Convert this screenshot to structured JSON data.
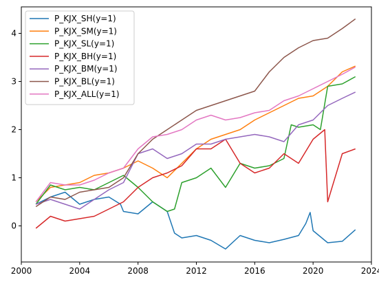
{
  "chart_data": {
    "type": "line",
    "xlim": [
      2000.0,
      2024.0
    ],
    "ylim": [
      -0.75,
      4.55
    ],
    "x_ticks": [
      2000,
      2004,
      2008,
      2012,
      2016,
      2020,
      2024
    ],
    "y_ticks": [
      0,
      1,
      2,
      3,
      4
    ],
    "grid": false,
    "legend_position": "top-left",
    "series": [
      {
        "name": "P_KJX_SH(y=1)",
        "color": "#1f77b4",
        "points": [
          [
            2001.0,
            0.45
          ],
          [
            2002.0,
            0.6
          ],
          [
            2003.0,
            0.7
          ],
          [
            2004.0,
            0.45
          ],
          [
            2005.0,
            0.55
          ],
          [
            2006.0,
            0.6
          ],
          [
            2006.8,
            0.45
          ],
          [
            2007.0,
            0.3
          ],
          [
            2008.0,
            0.25
          ],
          [
            2009.0,
            0.5
          ],
          [
            2010.0,
            0.3
          ],
          [
            2010.5,
            -0.15
          ],
          [
            2011.0,
            -0.25
          ],
          [
            2012.0,
            -0.2
          ],
          [
            2013.0,
            -0.3
          ],
          [
            2014.0,
            -0.48
          ],
          [
            2015.0,
            -0.2
          ],
          [
            2016.0,
            -0.3
          ],
          [
            2017.0,
            -0.35
          ],
          [
            2018.0,
            -0.28
          ],
          [
            2019.0,
            -0.2
          ],
          [
            2019.5,
            0.05
          ],
          [
            2019.8,
            0.28
          ],
          [
            2020.0,
            -0.1
          ],
          [
            2021.0,
            -0.35
          ],
          [
            2022.0,
            -0.32
          ],
          [
            2022.9,
            -0.08
          ]
        ]
      },
      {
        "name": "P_KJX_SM(y=1)",
        "color": "#ff7f0e",
        "points": [
          [
            2001.0,
            0.5
          ],
          [
            2002.0,
            0.8
          ],
          [
            2003.0,
            0.85
          ],
          [
            2004.0,
            0.9
          ],
          [
            2005.0,
            1.05
          ],
          [
            2006.0,
            1.1
          ],
          [
            2007.0,
            1.2
          ],
          [
            2008.0,
            1.35
          ],
          [
            2009.0,
            1.2
          ],
          [
            2010.0,
            1.0
          ],
          [
            2011.0,
            1.3
          ],
          [
            2012.0,
            1.6
          ],
          [
            2013.0,
            1.8
          ],
          [
            2014.0,
            1.9
          ],
          [
            2015.0,
            2.0
          ],
          [
            2016.0,
            2.2
          ],
          [
            2017.0,
            2.35
          ],
          [
            2018.0,
            2.5
          ],
          [
            2019.0,
            2.65
          ],
          [
            2020.0,
            2.7
          ],
          [
            2021.0,
            2.9
          ],
          [
            2022.0,
            3.2
          ],
          [
            2022.9,
            3.32
          ]
        ]
      },
      {
        "name": "P_KJX_SL(y=1)",
        "color": "#2ca02c",
        "points": [
          [
            2001.0,
            0.45
          ],
          [
            2002.0,
            0.85
          ],
          [
            2003.0,
            0.75
          ],
          [
            2004.0,
            0.8
          ],
          [
            2005.0,
            0.75
          ],
          [
            2006.0,
            0.9
          ],
          [
            2007.0,
            1.05
          ],
          [
            2008.0,
            0.8
          ],
          [
            2009.0,
            0.5
          ],
          [
            2010.0,
            0.3
          ],
          [
            2010.5,
            0.35
          ],
          [
            2011.0,
            0.9
          ],
          [
            2012.0,
            1.0
          ],
          [
            2013.0,
            1.2
          ],
          [
            2014.0,
            0.8
          ],
          [
            2015.0,
            1.3
          ],
          [
            2016.0,
            1.2
          ],
          [
            2017.0,
            1.25
          ],
          [
            2018.0,
            1.4
          ],
          [
            2018.5,
            2.1
          ],
          [
            2019.0,
            2.05
          ],
          [
            2020.0,
            2.1
          ],
          [
            2020.5,
            2.0
          ],
          [
            2021.0,
            2.9
          ],
          [
            2022.0,
            2.95
          ],
          [
            2022.9,
            3.1
          ]
        ]
      },
      {
        "name": "P_KJX_BH(y=1)",
        "color": "#d62728",
        "points": [
          [
            2001.0,
            -0.05
          ],
          [
            2002.0,
            0.2
          ],
          [
            2003.0,
            0.1
          ],
          [
            2004.0,
            0.15
          ],
          [
            2005.0,
            0.2
          ],
          [
            2006.0,
            0.35
          ],
          [
            2007.0,
            0.5
          ],
          [
            2008.0,
            0.8
          ],
          [
            2009.0,
            1.0
          ],
          [
            2010.0,
            1.1
          ],
          [
            2011.0,
            1.25
          ],
          [
            2012.0,
            1.6
          ],
          [
            2013.0,
            1.6
          ],
          [
            2014.0,
            1.8
          ],
          [
            2015.0,
            1.3
          ],
          [
            2016.0,
            1.1
          ],
          [
            2017.0,
            1.2
          ],
          [
            2018.0,
            1.5
          ],
          [
            2019.0,
            1.3
          ],
          [
            2020.0,
            1.8
          ],
          [
            2020.8,
            2.0
          ],
          [
            2021.0,
            0.5
          ],
          [
            2022.0,
            1.5
          ],
          [
            2022.9,
            1.6
          ]
        ]
      },
      {
        "name": "P_KJX_BM(y=1)",
        "color": "#9467bd",
        "points": [
          [
            2001.0,
            0.45
          ],
          [
            2002.0,
            0.55
          ],
          [
            2003.0,
            0.45
          ],
          [
            2004.0,
            0.35
          ],
          [
            2005.0,
            0.55
          ],
          [
            2006.0,
            0.75
          ],
          [
            2007.0,
            0.9
          ],
          [
            2008.0,
            1.5
          ],
          [
            2009.0,
            1.6
          ],
          [
            2010.0,
            1.4
          ],
          [
            2011.0,
            1.5
          ],
          [
            2012.0,
            1.7
          ],
          [
            2013.0,
            1.7
          ],
          [
            2014.0,
            1.8
          ],
          [
            2015.0,
            1.85
          ],
          [
            2016.0,
            1.9
          ],
          [
            2017.0,
            1.85
          ],
          [
            2018.0,
            1.75
          ],
          [
            2019.0,
            2.1
          ],
          [
            2020.0,
            2.2
          ],
          [
            2021.0,
            2.5
          ],
          [
            2022.0,
            2.65
          ],
          [
            2022.9,
            2.78
          ]
        ]
      },
      {
        "name": "P_KJX_BL(y=1)",
        "color": "#8c564b",
        "points": [
          [
            2001.0,
            0.4
          ],
          [
            2002.0,
            0.6
          ],
          [
            2003.0,
            0.55
          ],
          [
            2004.0,
            0.7
          ],
          [
            2005.0,
            0.75
          ],
          [
            2006.0,
            0.8
          ],
          [
            2007.0,
            1.0
          ],
          [
            2008.0,
            1.5
          ],
          [
            2009.0,
            1.8
          ],
          [
            2010.0,
            2.0
          ],
          [
            2011.0,
            2.2
          ],
          [
            2012.0,
            2.4
          ],
          [
            2013.0,
            2.5
          ],
          [
            2014.0,
            2.6
          ],
          [
            2015.0,
            2.7
          ],
          [
            2016.0,
            2.8
          ],
          [
            2017.0,
            3.2
          ],
          [
            2018.0,
            3.5
          ],
          [
            2019.0,
            3.7
          ],
          [
            2020.0,
            3.85
          ],
          [
            2021.0,
            3.9
          ],
          [
            2022.0,
            4.1
          ],
          [
            2022.9,
            4.3
          ]
        ]
      },
      {
        "name": "P_KJX_ALL(y=1)",
        "color": "#e377c2",
        "points": [
          [
            2001.0,
            0.5
          ],
          [
            2002.0,
            0.9
          ],
          [
            2003.0,
            0.85
          ],
          [
            2004.0,
            0.85
          ],
          [
            2005.0,
            0.95
          ],
          [
            2006.0,
            1.1
          ],
          [
            2007.0,
            1.2
          ],
          [
            2008.0,
            1.6
          ],
          [
            2009.0,
            1.85
          ],
          [
            2010.0,
            1.9
          ],
          [
            2011.0,
            2.0
          ],
          [
            2012.0,
            2.2
          ],
          [
            2013.0,
            2.3
          ],
          [
            2014.0,
            2.2
          ],
          [
            2015.0,
            2.25
          ],
          [
            2016.0,
            2.35
          ],
          [
            2017.0,
            2.4
          ],
          [
            2018.0,
            2.6
          ],
          [
            2019.0,
            2.7
          ],
          [
            2020.0,
            2.85
          ],
          [
            2021.0,
            3.0
          ],
          [
            2022.0,
            3.15
          ],
          [
            2022.9,
            3.3
          ]
        ]
      }
    ]
  }
}
